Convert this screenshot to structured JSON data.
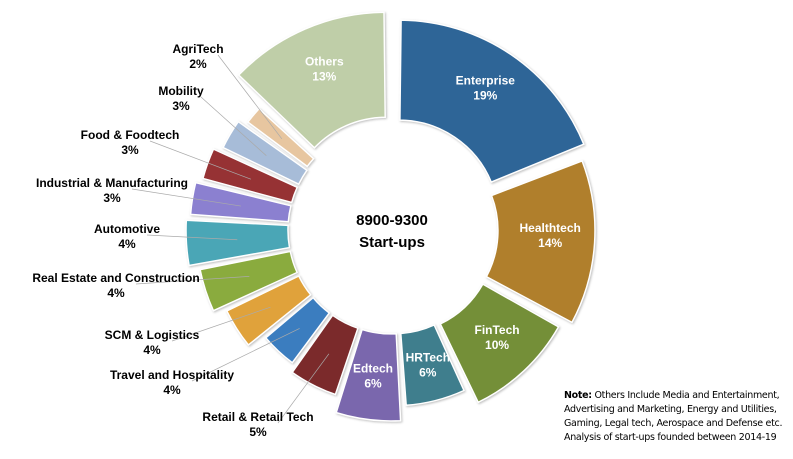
{
  "chart_data": {
    "type": "pie",
    "donut": true,
    "center_label": [
      "8900-9300",
      "Start-ups"
    ],
    "categories": [
      "Enterprise",
      "Healthtech",
      "FinTech",
      "HRTech",
      "Edtech",
      "Retail & Retail Tech",
      "Travel and Hospitality",
      "SCM & Logistics",
      "Real Estate and Construction",
      "Automotive",
      "Industrial & Manufacturing",
      "Food & Foodtech",
      "Mobility",
      "AgriTech",
      "Others"
    ],
    "values": [
      19,
      14,
      10,
      6,
      6,
      5,
      4,
      4,
      4,
      4,
      3,
      3,
      3,
      2,
      13
    ],
    "labels": [
      "19%",
      "14%",
      "10%",
      "6%",
      "6%",
      "5%",
      "4%",
      "4%",
      "4%",
      "4%",
      "3%",
      "3%",
      "3%",
      "2%",
      "13%"
    ],
    "colors": [
      "#2e6597",
      "#b07f2c",
      "#748f38",
      "#3f7e8d",
      "#7a67ad",
      "#7b2a2b",
      "#3b7dbf",
      "#e0a23b",
      "#8aab3e",
      "#4aa6b6",
      "#8b80d0",
      "#963234",
      "#a7bcd8",
      "#e7c6a0",
      "#bfcea8"
    ],
    "legend": "none"
  },
  "note": {
    "label": "Note:",
    "text": " Others Include  Media  and Entertainment,  Advertising and Marketing, Energy and Utilities,  Gaming,  Legal tech, Aerospace and Defense etc. Analysis of start-ups founded  between  2014-19"
  }
}
